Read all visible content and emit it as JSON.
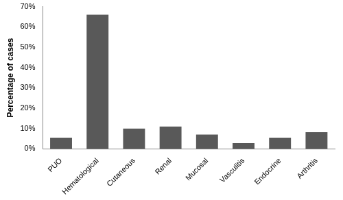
{
  "chart_data": {
    "type": "bar",
    "ylabel": "Percentage of cases",
    "categories": [
      "PUO",
      "Hematological",
      "Cutaneous",
      "Renal",
      "Mucosal",
      "Vasculitis",
      "Endocrine",
      "Arthritis"
    ],
    "values": [
      5.5,
      66,
      10,
      11,
      7,
      2.8,
      5.5,
      8.2
    ],
    "color": "#595959",
    "ylim": [
      0,
      70
    ],
    "yticks": [
      {
        "value": 0,
        "label": "0%"
      },
      {
        "value": 10,
        "label": "10%"
      },
      {
        "value": 20,
        "label": "20%"
      },
      {
        "value": 30,
        "label": "30%"
      },
      {
        "value": 40,
        "label": "40%"
      },
      {
        "value": 50,
        "label": "50%"
      },
      {
        "value": 60,
        "label": "60%"
      },
      {
        "value": 70,
        "label": "70%"
      }
    ],
    "grid": false
  }
}
